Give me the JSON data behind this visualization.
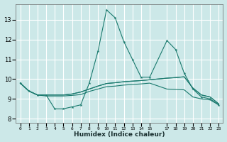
{
  "xlabel": "Humidex (Indice chaleur)",
  "bg_color": "#cce8e8",
  "grid_color": "#ffffff",
  "line_color": "#1a7a6e",
  "xlim": [
    -0.5,
    23.5
  ],
  "ylim": [
    7.8,
    13.8
  ],
  "yticks": [
    8,
    9,
    10,
    11,
    12,
    13
  ],
  "xtick_positions": [
    0,
    1,
    2,
    3,
    4,
    5,
    6,
    7,
    8,
    9,
    10,
    11,
    12,
    13,
    14,
    15,
    17,
    18,
    19,
    20,
    21,
    22,
    23
  ],
  "xtick_labels": [
    "0",
    "1",
    "2",
    "3",
    "4",
    "5",
    "6",
    "7",
    "8",
    "9",
    "10",
    "11",
    "12",
    "13",
    "14",
    "15",
    "17",
    "18",
    "19",
    "20",
    "21",
    "22",
    "23"
  ],
  "line1_x": [
    0,
    1,
    2,
    3,
    4,
    5,
    6,
    7,
    8,
    9,
    10,
    11,
    12,
    13,
    14,
    15,
    17,
    18,
    19,
    20,
    21,
    22,
    23
  ],
  "line1_y": [
    9.8,
    9.4,
    9.2,
    9.2,
    8.5,
    8.5,
    8.6,
    8.7,
    9.8,
    11.4,
    13.5,
    13.1,
    11.9,
    11.0,
    10.1,
    10.1,
    11.95,
    11.5,
    10.3,
    9.5,
    9.1,
    9.0,
    8.7
  ],
  "line2_x": [
    0,
    1,
    2,
    3,
    4,
    5,
    6,
    7,
    8,
    9,
    10,
    11,
    12,
    13,
    14,
    15,
    17,
    18,
    19,
    20,
    21,
    22,
    23
  ],
  "line2_y": [
    9.8,
    9.4,
    9.2,
    9.2,
    9.2,
    9.2,
    9.25,
    9.35,
    9.5,
    9.65,
    9.78,
    9.82,
    9.87,
    9.9,
    9.93,
    9.97,
    10.05,
    10.08,
    10.12,
    9.55,
    9.2,
    9.1,
    8.75
  ],
  "line3_x": [
    0,
    1,
    2,
    3,
    4,
    5,
    6,
    7,
    8,
    9,
    10,
    11,
    12,
    13,
    14,
    15,
    17,
    18,
    19,
    20,
    21,
    22,
    23
  ],
  "line3_y": [
    9.8,
    9.4,
    9.2,
    9.2,
    9.2,
    9.2,
    9.25,
    9.35,
    9.5,
    9.65,
    9.78,
    9.82,
    9.87,
    9.9,
    9.93,
    9.97,
    10.05,
    10.08,
    10.12,
    9.55,
    9.2,
    9.1,
    8.75
  ],
  "line4_x": [
    0,
    1,
    2,
    3,
    4,
    5,
    6,
    7,
    8,
    9,
    10,
    11,
    12,
    13,
    14,
    15,
    17,
    18,
    19,
    20,
    21,
    22,
    23
  ],
  "line4_y": [
    9.8,
    9.4,
    9.2,
    9.15,
    9.15,
    9.15,
    9.18,
    9.22,
    9.38,
    9.5,
    9.62,
    9.65,
    9.7,
    9.73,
    9.76,
    9.8,
    9.5,
    9.48,
    9.46,
    9.1,
    9.0,
    8.95,
    8.7
  ]
}
